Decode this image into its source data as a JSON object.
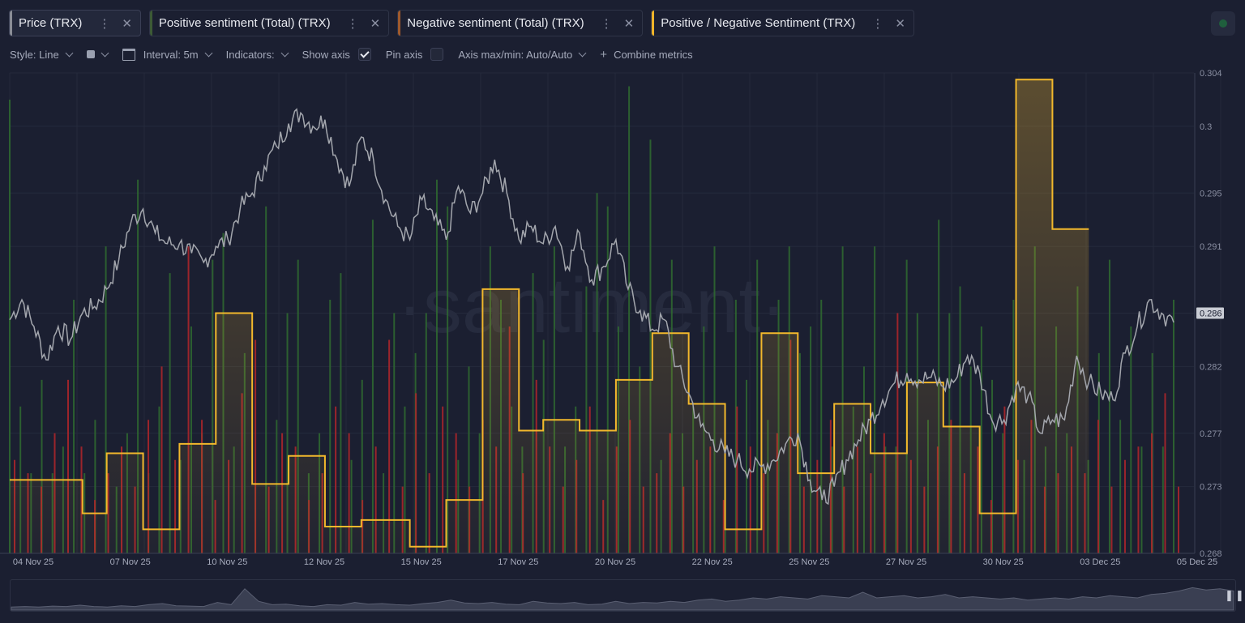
{
  "tabs": [
    {
      "label": "Price (TRX)",
      "color": "#8a8d96"
    },
    {
      "label": "Positive sentiment (Total) (TRX)",
      "color": "#3c5a36"
    },
    {
      "label": "Negative sentiment (Total) (TRX)",
      "color": "#a05a2c"
    },
    {
      "label": "Positive / Negative Sentiment (TRX)",
      "color": "#f0b429"
    }
  ],
  "toolbar": {
    "style": "Style: Line",
    "interval": "Interval: 5m",
    "indicators": "Indicators:",
    "show_axis": "Show axis",
    "show_axis_checked": true,
    "pin_axis": "Pin axis",
    "pin_axis_checked": false,
    "axis_maxmin": "Axis max/min: Auto/Auto",
    "combine": "Combine metrics"
  },
  "watermark": "·santiment·",
  "chart_data": {
    "type": "line",
    "x_ticks": [
      "04 Nov 25",
      "07 Nov 25",
      "10 Nov 25",
      "12 Nov 25",
      "15 Nov 25",
      "17 Nov 25",
      "20 Nov 25",
      "22 Nov 25",
      "25 Nov 25",
      "27 Nov 25",
      "30 Nov 25",
      "03 Dec 25",
      "05 Dec 25"
    ],
    "y_ticks": [
      0.304,
      0.3,
      0.295,
      0.291,
      0.286,
      0.282,
      0.277,
      0.273,
      0.268
    ],
    "ylim": [
      0.268,
      0.304
    ],
    "current_price_label": "0.286",
    "colors": {
      "price": "#a3a6ad",
      "positive": "#2f6b30",
      "negative": "#b3262a",
      "ratio": "#f2b82c"
    },
    "series": [
      {
        "name": "Price (TRX)",
        "kind": "line",
        "points": [
          [
            0,
            0.2855
          ],
          [
            1,
            0.287
          ],
          [
            2,
            0.285
          ],
          [
            3,
            0.2825
          ],
          [
            4,
            0.285
          ],
          [
            5,
            0.284
          ],
          [
            6,
            0.286
          ],
          [
            7,
            0.2865
          ],
          [
            8,
            0.2878
          ],
          [
            9,
            0.29
          ],
          [
            10,
            0.2928
          ],
          [
            11,
            0.2938
          ],
          [
            12,
            0.292
          ],
          [
            13,
            0.2912
          ],
          [
            14,
            0.2912
          ],
          [
            15,
            0.2905
          ],
          [
            16,
            0.2898
          ],
          [
            17,
            0.291
          ],
          [
            18,
            0.2915
          ],
          [
            19,
            0.2938
          ],
          [
            20,
            0.295
          ],
          [
            21,
            0.297
          ],
          [
            22,
            0.2985
          ],
          [
            23,
            0.3002
          ],
          [
            24,
            0.301
          ],
          [
            25,
            0.3
          ],
          [
            26,
            0.3005
          ],
          [
            27,
            0.2975
          ],
          [
            28,
            0.2955
          ],
          [
            29,
            0.2992
          ],
          [
            30,
            0.2975
          ],
          [
            31,
            0.2945
          ],
          [
            32,
            0.2925
          ],
          [
            33,
            0.2915
          ],
          [
            34,
            0.2945
          ],
          [
            35,
            0.293
          ],
          [
            36,
            0.2915
          ],
          [
            37,
            0.2955
          ],
          [
            38,
            0.2935
          ],
          [
            39,
            0.295
          ],
          [
            40,
            0.2975
          ],
          [
            41,
            0.295
          ],
          [
            42,
            0.2915
          ],
          [
            43,
            0.2925
          ],
          [
            44,
            0.2912
          ],
          [
            45,
            0.2925
          ],
          [
            46,
            0.2895
          ],
          [
            47,
            0.292
          ],
          [
            48,
            0.2885
          ],
          [
            49,
            0.2895
          ],
          [
            50,
            0.2915
          ],
          [
            51,
            0.2878
          ],
          [
            52,
            0.2862
          ],
          [
            53,
            0.2848
          ],
          [
            54,
            0.2855
          ],
          [
            55,
            0.282
          ],
          [
            56,
            0.28
          ],
          [
            57,
            0.2775
          ],
          [
            58,
            0.2765
          ],
          [
            59,
            0.2755
          ],
          [
            60,
            0.275
          ],
          [
            61,
            0.2743
          ],
          [
            62,
            0.2745
          ],
          [
            63,
            0.275
          ],
          [
            64,
            0.2762
          ],
          [
            65,
            0.277
          ],
          [
            66,
            0.2735
          ],
          [
            67,
            0.272
          ],
          [
            68,
            0.273
          ],
          [
            69,
            0.275
          ],
          [
            70,
            0.2765
          ],
          [
            71,
            0.278
          ],
          [
            72,
            0.2795
          ],
          [
            73,
            0.2808
          ],
          [
            74,
            0.2815
          ],
          [
            75,
            0.281
          ],
          [
            76,
            0.2812
          ],
          [
            77,
            0.2805
          ],
          [
            78,
            0.281
          ],
          [
            79,
            0.2828
          ],
          [
            80,
            0.2815
          ],
          [
            81,
            0.278
          ],
          [
            82,
            0.278
          ],
          [
            83,
            0.2805
          ],
          [
            84,
            0.2798
          ],
          [
            85,
            0.277
          ],
          [
            86,
            0.278
          ],
          [
            87,
            0.278
          ],
          [
            88,
            0.2828
          ],
          [
            89,
            0.2808
          ],
          [
            90,
            0.28
          ],
          [
            91,
            0.2795
          ],
          [
            92,
            0.283
          ],
          [
            93,
            0.285
          ],
          [
            94,
            0.287
          ],
          [
            95,
            0.286
          ],
          [
            96,
            0.2853
          ]
        ]
      },
      {
        "name": "Positive / Negative Sentiment (TRX)",
        "kind": "step",
        "points": [
          [
            0,
            0.2735
          ],
          [
            6,
            0.271
          ],
          [
            8,
            0.2755
          ],
          [
            11,
            0.2698
          ],
          [
            14,
            0.2762
          ],
          [
            17,
            0.286
          ],
          [
            20,
            0.2732
          ],
          [
            23,
            0.2753
          ],
          [
            26,
            0.27
          ],
          [
            29,
            0.2705
          ],
          [
            33,
            0.2685
          ],
          [
            36,
            0.272
          ],
          [
            39,
            0.2878
          ],
          [
            42,
            0.2772
          ],
          [
            44,
            0.278
          ],
          [
            47,
            0.2772
          ],
          [
            50,
            0.281
          ],
          [
            53,
            0.2845
          ],
          [
            56,
            0.2792
          ],
          [
            59,
            0.2698
          ],
          [
            62,
            0.2845
          ],
          [
            65,
            0.274
          ],
          [
            68,
            0.2792
          ],
          [
            71,
            0.2755
          ],
          [
            74,
            0.2808
          ],
          [
            77,
            0.2775
          ],
          [
            80,
            0.271
          ],
          [
            83,
            0.3035
          ],
          [
            86,
            0.2923
          ]
        ],
        "end_x": 89
      },
      {
        "name": "Positive sentiment (Total) (TRX)",
        "kind": "bar",
        "values": [
          0.302,
          0.279,
          0.274,
          0.281,
          0.274,
          0.276,
          0.287,
          0.274,
          0.278,
          0.291,
          0.273,
          0.277,
          0.296,
          0.274,
          0.279,
          0.289,
          0.275,
          0.285,
          0.277,
          0.29,
          0.292,
          0.276,
          0.283,
          0.273,
          0.294,
          0.278,
          0.286,
          0.29,
          0.274,
          0.277,
          0.287,
          0.289,
          0.275,
          0.281,
          0.293,
          0.274,
          0.286,
          0.279,
          0.283,
          0.286,
          0.296,
          0.294,
          0.275,
          0.282,
          0.277,
          0.291,
          0.287,
          0.279,
          0.276,
          0.289,
          0.284,
          0.291,
          0.276,
          0.279,
          0.288,
          0.295,
          0.294,
          0.285,
          0.303,
          0.282,
          0.299,
          0.275,
          0.29,
          0.277,
          0.279,
          0.285,
          0.291,
          0.273,
          0.287,
          0.281,
          0.29,
          0.278,
          0.287,
          0.291,
          0.283,
          0.285,
          0.287,
          0.276,
          0.291,
          0.279,
          0.282,
          0.291,
          0.276,
          0.276,
          0.29,
          0.286,
          0.278,
          0.293,
          0.286,
          0.288,
          0.282,
          0.285,
          0.281,
          0.277,
          0.287,
          0.275,
          0.291,
          0.276,
          0.285,
          0.277,
          0.288,
          0.275,
          0.283,
          0.29,
          0.278,
          0.285,
          0.276,
          0.283,
          0.276,
          0.287
        ]
      },
      {
        "name": "Negative sentiment (Total) (TRX)",
        "kind": "bar",
        "values": [
          0.275,
          0.274,
          0.273,
          0.277,
          0.281,
          0.276,
          0.272,
          0.274,
          0.276,
          0.273,
          0.278,
          0.282,
          0.275,
          0.291,
          0.278,
          0.272,
          0.275,
          0.28,
          0.284,
          0.273,
          0.277,
          0.276,
          0.272,
          0.274,
          0.279,
          0.277,
          0.272,
          0.276,
          0.284,
          0.273,
          0.28,
          0.274,
          0.279,
          0.277,
          0.273,
          0.278,
          0.276,
          0.285,
          0.274,
          0.281,
          0.276,
          0.273,
          0.275,
          0.279,
          0.272,
          0.276,
          0.278,
          0.273,
          0.274,
          0.277,
          0.273,
          0.275,
          0.276,
          0.272,
          0.279,
          0.276,
          0.274,
          0.277,
          0.284,
          0.273,
          0.275,
          0.278,
          0.273,
          0.276,
          0.274,
          0.277,
          0.286,
          0.275,
          0.273,
          0.276,
          0.278,
          0.274,
          0.276,
          0.272,
          0.279,
          0.275,
          0.278,
          0.273,
          0.274,
          0.276,
          0.274,
          0.278,
          0.273,
          0.275,
          0.276,
          0.277,
          0.28,
          0.273
        ]
      }
    ],
    "navigator_profile": [
      0.1,
      0.12,
      0.1,
      0.14,
      0.12,
      0.18,
      0.12,
      0.1,
      0.15,
      0.12,
      0.2,
      0.25,
      0.15,
      0.14,
      0.12,
      0.3,
      0.2,
      0.9,
      0.35,
      0.2,
      0.22,
      0.15,
      0.12,
      0.2,
      0.18,
      0.3,
      0.22,
      0.25,
      0.2,
      0.18,
      0.25,
      0.3,
      0.4,
      0.28,
      0.25,
      0.3,
      0.22,
      0.2,
      0.35,
      0.28,
      0.25,
      0.3,
      0.2,
      0.22,
      0.35,
      0.25,
      0.3,
      0.28,
      0.35,
      0.3,
      0.4,
      0.45,
      0.35,
      0.4,
      0.5,
      0.45,
      0.55,
      0.5,
      0.45,
      0.6,
      0.55,
      0.5,
      0.75,
      0.5,
      0.55,
      0.6,
      0.5,
      0.55,
      0.65,
      0.5,
      0.55,
      0.5,
      0.45,
      0.5,
      0.4,
      0.45,
      0.5,
      0.45,
      0.55,
      0.5,
      0.6,
      0.55,
      0.5,
      0.65,
      0.7,
      0.8,
      0.95,
      0.85,
      0.9,
      0.8
    ]
  }
}
